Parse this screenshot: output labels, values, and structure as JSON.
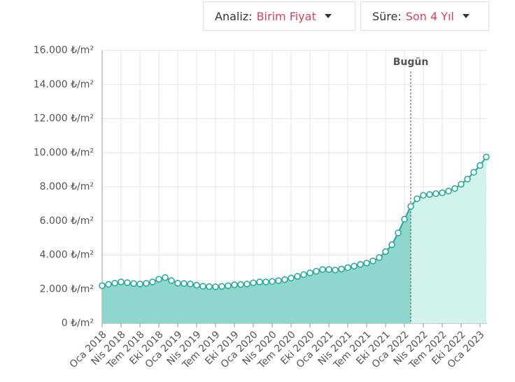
{
  "controls": [
    {
      "label": "Analiz:",
      "value": "Birim Fiyat"
    },
    {
      "label": "Süre:",
      "value": "Son 4 Yıl"
    }
  ],
  "chart_data": {
    "type": "area-line",
    "categories": [
      "Oca 2018",
      null,
      null,
      "Nis 2018",
      null,
      null,
      "Tem 2018",
      null,
      null,
      "Eki 2018",
      null,
      null,
      "Oca 2019",
      null,
      null,
      "Nis 2019",
      null,
      null,
      "Tem 2019",
      null,
      null,
      "Eki 2019",
      null,
      null,
      "Oca 2020",
      null,
      null,
      "Nis 2020",
      null,
      null,
      "Tem 2020",
      null,
      null,
      "Eki 2020",
      null,
      null,
      "Oca 2021",
      null,
      null,
      "Nis 2021",
      null,
      null,
      "Tem 2021",
      null,
      null,
      "Eki 2021",
      null,
      null,
      "Oca 2022",
      null,
      null,
      "Nis 2022",
      null,
      null,
      "Tem 2022",
      null,
      null,
      "Eki 2022",
      null,
      null,
      "Oca 2023",
      null
    ],
    "series": [
      {
        "color": "#1aa99a",
        "values": [
          2200,
          2280,
          2350,
          2420,
          2380,
          2330,
          2300,
          2340,
          2420,
          2580,
          2680,
          2500,
          2350,
          2330,
          2300,
          2230,
          2170,
          2150,
          2140,
          2160,
          2200,
          2250,
          2270,
          2300,
          2370,
          2420,
          2420,
          2450,
          2500,
          2560,
          2650,
          2750,
          2850,
          2950,
          3050,
          3150,
          3150,
          3120,
          3180,
          3260,
          3350,
          3450,
          3530,
          3650,
          3850,
          4200,
          4600,
          5300,
          6100,
          6850,
          7300,
          7500,
          7550,
          7600,
          7650,
          7750,
          7900,
          8150,
          8450,
          8850,
          9250,
          9750
        ]
      }
    ],
    "ylim": [
      0,
      16000
    ],
    "yticks": [
      {
        "value": 0,
        "label": "0 ₺/m²"
      },
      {
        "value": 2000,
        "label": "2.000 ₺/m²"
      },
      {
        "value": 4000,
        "label": "4.000 ₺/m²"
      },
      {
        "value": 6000,
        "label": "6.000 ₺/m²"
      },
      {
        "value": 8000,
        "label": "8.000 ₺/m²"
      },
      {
        "value": 10000,
        "label": "10.000 ₺/m²"
      },
      {
        "value": 12000,
        "label": "12.000 ₺/m²"
      },
      {
        "value": 14000,
        "label": "14.000 ₺/m²"
      },
      {
        "value": 16000,
        "label": "16.000 ₺/m²"
      }
    ],
    "grid": true,
    "annotations": [
      {
        "text": "Bugün",
        "index": 49
      }
    ]
  }
}
